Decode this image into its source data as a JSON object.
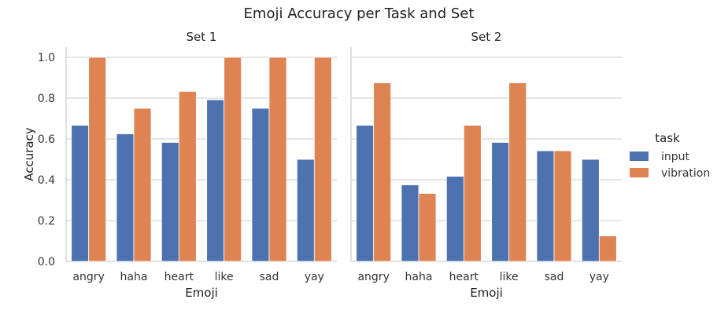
{
  "chart_data": {
    "type": "bar",
    "title": "Emoji Accuracy per Task and Set",
    "xlabel": "Emoji",
    "ylabel": "Accuracy",
    "ylim": [
      0,
      1.05
    ],
    "yticks": [
      "0.0",
      "0.2",
      "0.4",
      "0.6",
      "0.8",
      "1.0"
    ],
    "grid": true,
    "legend": {
      "title": "task",
      "placement": "right",
      "entries": [
        "input",
        "vibration"
      ]
    },
    "colors": {
      "input": "#4c72b0",
      "vibration": "#dd8452"
    },
    "categories": [
      "angry",
      "haha",
      "heart",
      "like",
      "sad",
      "yay"
    ],
    "panels": [
      {
        "title": "Set 1",
        "series": [
          {
            "name": "input",
            "values": [
              0.667,
              0.625,
              0.583,
              0.792,
              0.75,
              0.5
            ]
          },
          {
            "name": "vibration",
            "values": [
              1.0,
              0.75,
              0.833,
              1.0,
              1.0,
              1.0
            ]
          }
        ]
      },
      {
        "title": "Set 2",
        "series": [
          {
            "name": "input",
            "values": [
              0.667,
              0.375,
              0.417,
              0.583,
              0.542,
              0.5
            ]
          },
          {
            "name": "vibration",
            "values": [
              0.875,
              0.333,
              0.667,
              0.875,
              0.542,
              0.125
            ]
          }
        ]
      }
    ]
  }
}
